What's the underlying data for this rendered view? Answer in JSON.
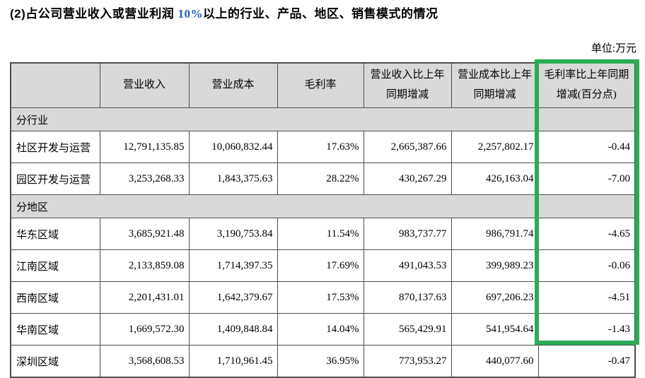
{
  "title": {
    "prefix": "(2)占公司营业收入或营业利润 ",
    "highlight": "10%",
    "suffix": "以上的行业、产品、地区、销售模式的情况"
  },
  "unit_label": "单位:万元",
  "table": {
    "headers": [
      "",
      "营业收入",
      "营业成本",
      "毛利率",
      "营业收入比上年同期增减",
      "营业成本比上年同期增减",
      "毛利率比上年同期增减(百分点)"
    ],
    "sections": [
      {
        "label": "分行业",
        "rows": [
          {
            "name": "社区开发与运营",
            "values": [
              "12,791,135.85",
              "10,060,832.44",
              "17.63%",
              "2,665,387.66",
              "2,257,802.17",
              "-0.44"
            ]
          },
          {
            "name": "园区开发与运营",
            "values": [
              "3,253,268.33",
              "1,843,375.63",
              "28.22%",
              "430,267.29",
              "426,163.04",
              "-7.00"
            ]
          }
        ]
      },
      {
        "label": "分地区",
        "rows": [
          {
            "name": "华东区域",
            "values": [
              "3,685,921.48",
              "3,190,753.84",
              "11.54%",
              "983,737.77",
              "986,791.74",
              "-4.65"
            ]
          },
          {
            "name": "江南区域",
            "values": [
              "2,133,859.08",
              "1,714,397.35",
              "17.69%",
              "491,043.53",
              "399,989.23",
              "-0.06"
            ]
          },
          {
            "name": "西南区域",
            "values": [
              "2,201,431.01",
              "1,642,379.67",
              "17.53%",
              "870,137.63",
              "697,206.23",
              "-4.51"
            ]
          },
          {
            "name": "华南区域",
            "values": [
              "1,669,572.30",
              "1,409,848.84",
              "14.04%",
              "565,429.91",
              "541,954.64",
              "-1.43"
            ]
          },
          {
            "name": "深圳区域",
            "values": [
              "3,568,608.53",
              "1,710,961.45",
              "36.95%",
              "773,953.27",
              "440,077.60",
              "-0.47"
            ]
          }
        ]
      }
    ]
  },
  "annotation": {
    "highlight_color": "#2aac54",
    "highlighted_column": "毛利率比上年同期增减(百分点)"
  },
  "colors": {
    "header_bg": "#d9d9d9",
    "border": "#4d4d4d",
    "title_number_blue": "#1f5bb5"
  }
}
